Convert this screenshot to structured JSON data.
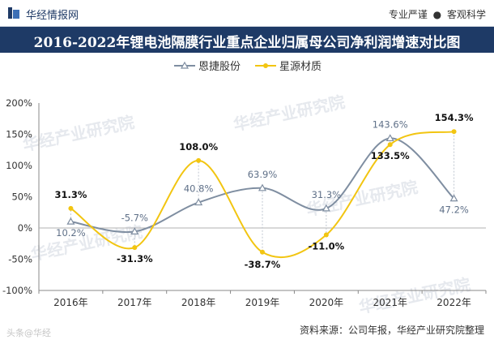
{
  "header": {
    "brand": "华经情报网",
    "slogan_left": "专业严谨",
    "slogan_dot": "●",
    "slogan_right": "客观科学"
  },
  "title": "2016-2022年锂电池隔膜行业重点企业归属母公司净利润增速对比图",
  "footer": {
    "source": "资料来源：公司年报，华经产业研究院整理",
    "watermark": "头条@华经"
  },
  "watermark_text": "华经产业研究院",
  "chart_data": {
    "type": "line",
    "categories": [
      "2016年",
      "2017年",
      "2018年",
      "2019年",
      "2020年",
      "2021年",
      "2022年"
    ],
    "ylim": [
      -100,
      200
    ],
    "yticks": [
      -100,
      -50,
      0,
      50,
      100,
      150,
      200
    ],
    "ytick_labels": [
      "-100%",
      "-50%",
      "0%",
      "50%",
      "100%",
      "150%",
      "200%"
    ],
    "series": [
      {
        "name": "恩捷股份",
        "color": "#7f8ea1",
        "marker": "triangle",
        "values": [
          10.2,
          -5.7,
          40.8,
          63.9,
          31.3,
          143.6,
          47.2
        ],
        "labels": [
          "10.2%",
          "-5.7%",
          "40.8%",
          "63.9%",
          "31.3%",
          "143.6%",
          "47.2%"
        ]
      },
      {
        "name": "星源材质",
        "color": "#f2c511",
        "marker": "circle",
        "values": [
          31.3,
          -31.3,
          108.0,
          -38.7,
          -11.0,
          133.5,
          154.3
        ],
        "labels": [
          "31.3%",
          "-31.3%",
          "108.0%",
          "-38.7%",
          "-11.0%",
          "133.5%",
          "154.3%"
        ]
      }
    ]
  }
}
